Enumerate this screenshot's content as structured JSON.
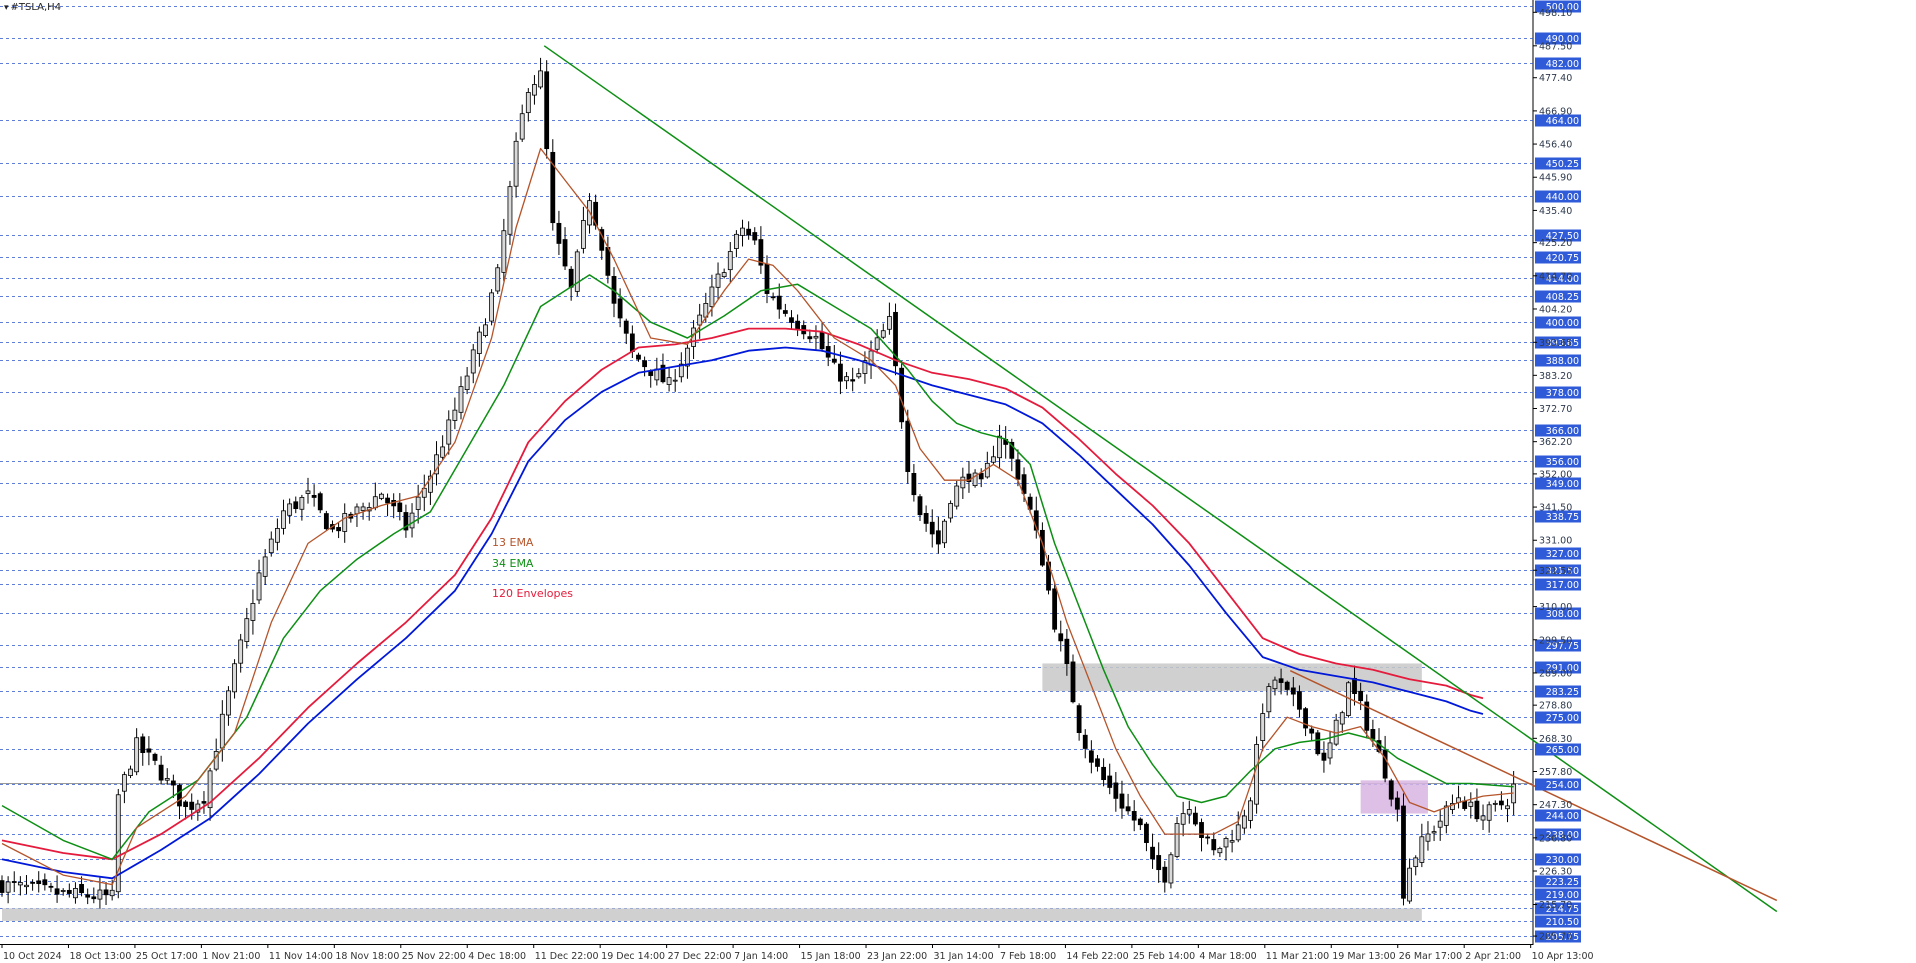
{
  "symbol": "#TSLA,H4",
  "colors": {
    "background": "#ffffff",
    "bull_candle": "#d9d9d9",
    "bear_candle": "#000000",
    "ema13": "#b5542a",
    "ema34": "#0d8f14",
    "env_upper": "#e41b3c",
    "env_lower": "#0018d8",
    "trendline_major": "#0d8f14",
    "trendline_minor": "#b5542a",
    "grid": "#2c52cc",
    "zone_gray": "#c8c8c8",
    "zone_pink": "#d8b4e2",
    "price_box": "#2f5bd8"
  },
  "annotations": [
    {
      "key": "ema13",
      "text": "13 EMA",
      "color": "#b5542a"
    },
    {
      "key": "ema34",
      "text": "34 EMA",
      "color": "#0d8f14"
    },
    {
      "key": "env",
      "text": "120 Envelopes",
      "color": "#e41b3c"
    }
  ],
  "chart_data": {
    "type": "candlestick",
    "title": "#TSLA,H4",
    "ylim": [
      203.2,
      502.0
    ],
    "price_scale_small": [
      "498.10",
      "487.50",
      "477.40",
      "466.90",
      "456.40",
      "445.90",
      "435.40",
      "425.20",
      "414.70",
      "404.20",
      "393.65",
      "383.20",
      "372.70",
      "362.20",
      "352.00",
      "341.50",
      "331.00",
      "321.50",
      "310.00",
      "299.50",
      "289.00",
      "278.80",
      "268.30",
      "257.80",
      "247.30",
      "236.80",
      "226.30",
      "215.70",
      "205.70"
    ],
    "horizontal_levels": [
      "500.00",
      "490.00",
      "482.00",
      "464.00",
      "450.25",
      "440.00",
      "427.50",
      "420.75",
      "414.00",
      "408.25",
      "400.00",
      "393.65",
      "388.00",
      "378.00",
      "366.00",
      "356.00",
      "349.00",
      "338.75",
      "327.00",
      "321.50",
      "317.00",
      "308.00",
      "297.75",
      "291.00",
      "283.25",
      "275.00",
      "265.00",
      "254.00",
      "244.00",
      "238.00",
      "230.00",
      "223.25",
      "219.00",
      "214.75",
      "210.50",
      "205.75"
    ],
    "current_price": "254.00",
    "x_labels": [
      "10 Oct 2024",
      "18 Oct 13:00",
      "25 Oct 17:00",
      "1 Nov 21:00",
      "11 Nov 14:00",
      "18 Nov 18:00",
      "25 Nov 22:00",
      "4 Dec 18:00",
      "11 Dec 22:00",
      "19 Dec 14:00",
      "27 Dec 22:00",
      "7 Jan 14:00",
      "15 Jan 18:00",
      "23 Jan 22:00",
      "31 Jan 14:00",
      "7 Feb 18:00",
      "14 Feb 22:00",
      "25 Feb 14:00",
      "4 Mar 18:00",
      "11 Mar 21:00",
      "19 Mar 13:00",
      "26 Mar 17:00",
      "2 Apr 21:00",
      "10 Apr 13:00"
    ],
    "close_path": [
      [
        0,
        222
      ],
      [
        10,
        219
      ],
      [
        18,
        218
      ],
      [
        19,
        250
      ],
      [
        22,
        266
      ],
      [
        25,
        260
      ],
      [
        30,
        246
      ],
      [
        33,
        250
      ],
      [
        38,
        290
      ],
      [
        42,
        320
      ],
      [
        46,
        340
      ],
      [
        50,
        345
      ],
      [
        54,
        334
      ],
      [
        58,
        340
      ],
      [
        62,
        346
      ],
      [
        66,
        335
      ],
      [
        70,
        352
      ],
      [
        74,
        372
      ],
      [
        78,
        395
      ],
      [
        81,
        415
      ],
      [
        84,
        455
      ],
      [
        86,
        475
      ],
      [
        88,
        478
      ],
      [
        90,
        430
      ],
      [
        93,
        410
      ],
      [
        96,
        440
      ],
      [
        98,
        425
      ],
      [
        100,
        405
      ],
      [
        103,
        390
      ],
      [
        106,
        385
      ],
      [
        109,
        380
      ],
      [
        112,
        392
      ],
      [
        115,
        405
      ],
      [
        118,
        418
      ],
      [
        121,
        430
      ],
      [
        123,
        425
      ],
      [
        125,
        410
      ],
      [
        127,
        405
      ],
      [
        130,
        400
      ],
      [
        133,
        395
      ],
      [
        136,
        385
      ],
      [
        139,
        380
      ],
      [
        142,
        390
      ],
      [
        145,
        400
      ],
      [
        148,
        355
      ],
      [
        150,
        340
      ],
      [
        153,
        330
      ],
      [
        155,
        345
      ],
      [
        158,
        352
      ],
      [
        160,
        348
      ],
      [
        163,
        365
      ],
      [
        166,
        352
      ],
      [
        168,
        340
      ],
      [
        170,
        325
      ],
      [
        172,
        305
      ],
      [
        174,
        290
      ],
      [
        176,
        272
      ],
      [
        178,
        262
      ],
      [
        180,
        255
      ],
      [
        182,
        250
      ],
      [
        184,
        245
      ],
      [
        186,
        240
      ],
      [
        188,
        228
      ],
      [
        190,
        225
      ],
      [
        192,
        242
      ],
      [
        194,
        248
      ],
      [
        196,
        238
      ],
      [
        198,
        232
      ],
      [
        200,
        236
      ],
      [
        202,
        240
      ],
      [
        204,
        250
      ],
      [
        206,
        278
      ],
      [
        208,
        287
      ],
      [
        210,
        282
      ],
      [
        212,
        278
      ],
      [
        214,
        270
      ],
      [
        216,
        260
      ],
      [
        218,
        272
      ],
      [
        220,
        285
      ],
      [
        222,
        278
      ],
      [
        224,
        268
      ],
      [
        226,
        258
      ],
      [
        228,
        245
      ],
      [
        229,
        220
      ],
      [
        230,
        228
      ],
      [
        232,
        235
      ],
      [
        234,
        240
      ],
      [
        236,
        245
      ],
      [
        238,
        250
      ],
      [
        240,
        246
      ],
      [
        242,
        244
      ],
      [
        244,
        246
      ],
      [
        246,
        249
      ],
      [
        247,
        253
      ]
    ],
    "ema13_path": [
      [
        0,
        235
      ],
      [
        10,
        225
      ],
      [
        18,
        222
      ],
      [
        22,
        240
      ],
      [
        30,
        250
      ],
      [
        38,
        270
      ],
      [
        44,
        305
      ],
      [
        50,
        330
      ],
      [
        56,
        338
      ],
      [
        62,
        342
      ],
      [
        68,
        345
      ],
      [
        74,
        362
      ],
      [
        80,
        395
      ],
      [
        84,
        430
      ],
      [
        88,
        455
      ],
      [
        92,
        445
      ],
      [
        96,
        435
      ],
      [
        100,
        420
      ],
      [
        106,
        395
      ],
      [
        112,
        393
      ],
      [
        118,
        410
      ],
      [
        122,
        420
      ],
      [
        126,
        418
      ],
      [
        130,
        410
      ],
      [
        136,
        395
      ],
      [
        142,
        388
      ],
      [
        146,
        380
      ],
      [
        150,
        360
      ],
      [
        154,
        350
      ],
      [
        158,
        350
      ],
      [
        162,
        355
      ],
      [
        166,
        350
      ],
      [
        170,
        330
      ],
      [
        174,
        305
      ],
      [
        178,
        285
      ],
      [
        182,
        265
      ],
      [
        186,
        250
      ],
      [
        190,
        238
      ],
      [
        194,
        238
      ],
      [
        198,
        238
      ],
      [
        202,
        242
      ],
      [
        206,
        265
      ],
      [
        210,
        275
      ],
      [
        214,
        272
      ],
      [
        218,
        270
      ],
      [
        222,
        272
      ],
      [
        226,
        262
      ],
      [
        230,
        248
      ],
      [
        234,
        245
      ],
      [
        238,
        248
      ],
      [
        242,
        250
      ],
      [
        247,
        251
      ]
    ],
    "ema34_path": [
      [
        0,
        247
      ],
      [
        10,
        236
      ],
      [
        18,
        230
      ],
      [
        24,
        245
      ],
      [
        32,
        255
      ],
      [
        40,
        275
      ],
      [
        46,
        300
      ],
      [
        52,
        315
      ],
      [
        58,
        325
      ],
      [
        64,
        333
      ],
      [
        70,
        340
      ],
      [
        76,
        360
      ],
      [
        82,
        380
      ],
      [
        88,
        405
      ],
      [
        92,
        410
      ],
      [
        96,
        415
      ],
      [
        100,
        410
      ],
      [
        106,
        400
      ],
      [
        112,
        395
      ],
      [
        118,
        402
      ],
      [
        124,
        410
      ],
      [
        130,
        412
      ],
      [
        136,
        405
      ],
      [
        142,
        398
      ],
      [
        148,
        385
      ],
      [
        152,
        375
      ],
      [
        156,
        368
      ],
      [
        160,
        365
      ],
      [
        164,
        363
      ],
      [
        168,
        355
      ],
      [
        172,
        330
      ],
      [
        176,
        310
      ],
      [
        180,
        290
      ],
      [
        184,
        272
      ],
      [
        188,
        260
      ],
      [
        192,
        250
      ],
      [
        196,
        248
      ],
      [
        200,
        250
      ],
      [
        204,
        258
      ],
      [
        208,
        265
      ],
      [
        212,
        267
      ],
      [
        216,
        268
      ],
      [
        220,
        270
      ],
      [
        224,
        268
      ],
      [
        228,
        262
      ],
      [
        232,
        258
      ],
      [
        236,
        254
      ],
      [
        240,
        254
      ],
      [
        247,
        253
      ]
    ],
    "env_upper_path": [
      [
        0,
        236
      ],
      [
        10,
        232
      ],
      [
        18,
        230
      ],
      [
        26,
        238
      ],
      [
        34,
        248
      ],
      [
        42,
        262
      ],
      [
        50,
        278
      ],
      [
        58,
        292
      ],
      [
        66,
        305
      ],
      [
        74,
        320
      ],
      [
        80,
        338
      ],
      [
        86,
        362
      ],
      [
        92,
        375
      ],
      [
        98,
        385
      ],
      [
        104,
        392
      ],
      [
        110,
        393
      ],
      [
        116,
        395
      ],
      [
        122,
        398
      ],
      [
        128,
        398
      ],
      [
        134,
        397
      ],
      [
        140,
        393
      ],
      [
        146,
        388
      ],
      [
        152,
        384
      ],
      [
        158,
        382
      ],
      [
        164,
        379
      ],
      [
        170,
        373
      ],
      [
        176,
        363
      ],
      [
        182,
        352
      ],
      [
        188,
        342
      ],
      [
        194,
        330
      ],
      [
        200,
        315
      ],
      [
        206,
        300
      ],
      [
        212,
        295
      ],
      [
        218,
        292
      ],
      [
        224,
        290
      ],
      [
        230,
        287
      ],
      [
        236,
        285
      ],
      [
        240,
        282
      ],
      [
        242,
        281
      ]
    ],
    "env_lower_path": [
      [
        0,
        230
      ],
      [
        10,
        226
      ],
      [
        18,
        224
      ],
      [
        26,
        233
      ],
      [
        34,
        243
      ],
      [
        42,
        257
      ],
      [
        50,
        273
      ],
      [
        58,
        287
      ],
      [
        66,
        300
      ],
      [
        74,
        315
      ],
      [
        80,
        333
      ],
      [
        86,
        356
      ],
      [
        92,
        369
      ],
      [
        98,
        378
      ],
      [
        104,
        384
      ],
      [
        110,
        386
      ],
      [
        116,
        388
      ],
      [
        122,
        391
      ],
      [
        128,
        392
      ],
      [
        134,
        391
      ],
      [
        140,
        388
      ],
      [
        146,
        384
      ],
      [
        152,
        380
      ],
      [
        158,
        377
      ],
      [
        164,
        374
      ],
      [
        170,
        368
      ],
      [
        176,
        358
      ],
      [
        182,
        347
      ],
      [
        188,
        336
      ],
      [
        194,
        323
      ],
      [
        200,
        308
      ],
      [
        206,
        294
      ],
      [
        212,
        290
      ],
      [
        218,
        288
      ],
      [
        224,
        286
      ],
      [
        230,
        283
      ],
      [
        236,
        280
      ],
      [
        240,
        277
      ],
      [
        242,
        276
      ]
    ],
    "trendlines": [
      {
        "name": "major-downtrend",
        "from": [
          88.6,
          487.5
        ],
        "to": [
          290,
          213.5
        ]
      },
      {
        "name": "minor-downtrend",
        "from": [
          210.5,
          289.7
        ],
        "to": [
          290,
          217
        ]
      }
    ],
    "zones": [
      {
        "name": "support-zone",
        "from_x": 0,
        "to_x": 232,
        "y_low": 210.5,
        "y_high": 214.5
      },
      {
        "name": "resistance-zone",
        "from_x": 170,
        "to_x": 232,
        "y_low": 283.25,
        "y_high": 292
      },
      {
        "name": "consolidation-zone",
        "from_x": 222,
        "to_x": 233,
        "y_low": 244.5,
        "y_high": 255
      }
    ]
  }
}
